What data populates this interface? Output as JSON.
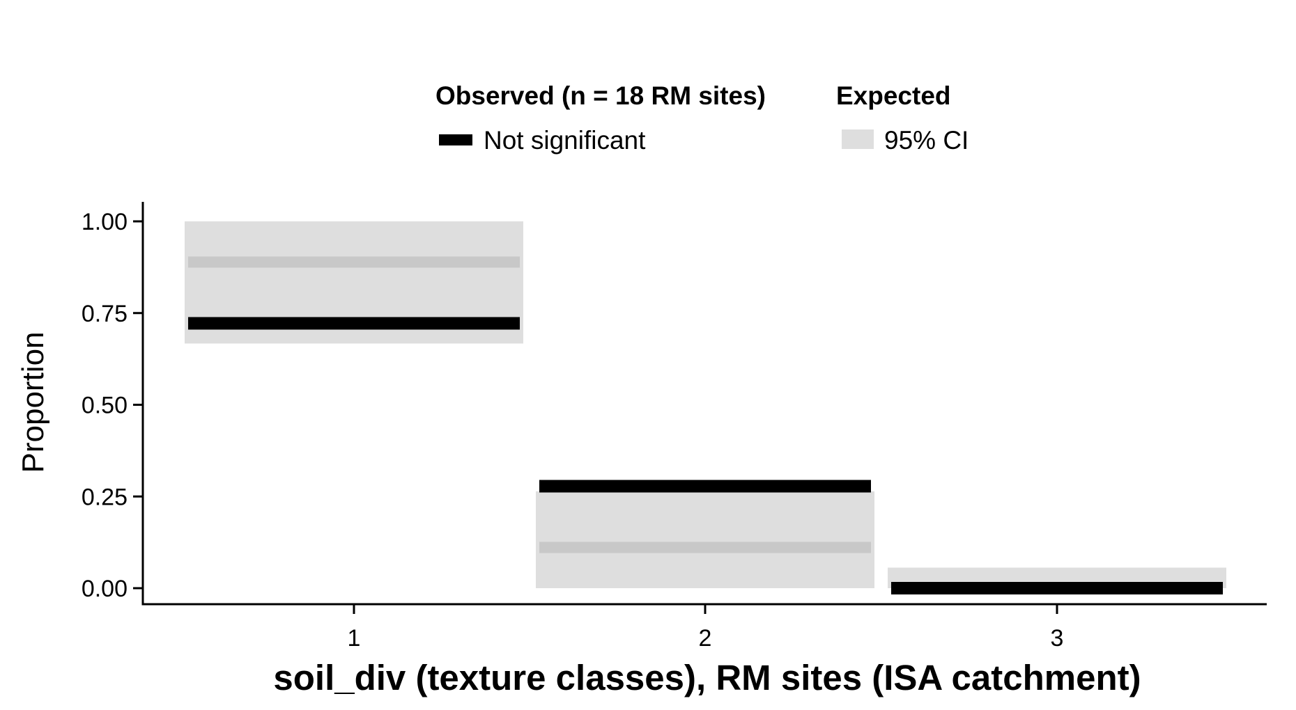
{
  "chart_data": {
    "type": "bar",
    "categories": [
      "1",
      "2",
      "3"
    ],
    "xlabel": "soil_div (texture classes), RM sites (ISA catchment)",
    "ylabel": "Proportion",
    "ylim": [
      0,
      1
    ],
    "yticks": [
      "0.00",
      "0.25",
      "0.50",
      "0.75",
      "1.00"
    ],
    "yticks_values": [
      0,
      0.25,
      0.5,
      0.75,
      1.0
    ],
    "grid": false,
    "legend": {
      "placement": "top",
      "observed_title": "Observed (n = 18 RM sites)",
      "observed_label": "Not significant",
      "expected_title": "Expected",
      "expected_label": "95% CI"
    },
    "observed": [
      0.722,
      0.278,
      0.0
    ],
    "expected_mean": [
      0.889,
      0.111,
      0.0
    ],
    "expected_ci": [
      [
        0.667,
        1.0
      ],
      [
        0.0,
        0.264
      ],
      [
        0.0,
        0.056
      ]
    ],
    "colors": {
      "observed": "#000000",
      "ci_band": "#dedede",
      "expected_mean": "#c8c8c8",
      "axis": "#000000"
    }
  }
}
